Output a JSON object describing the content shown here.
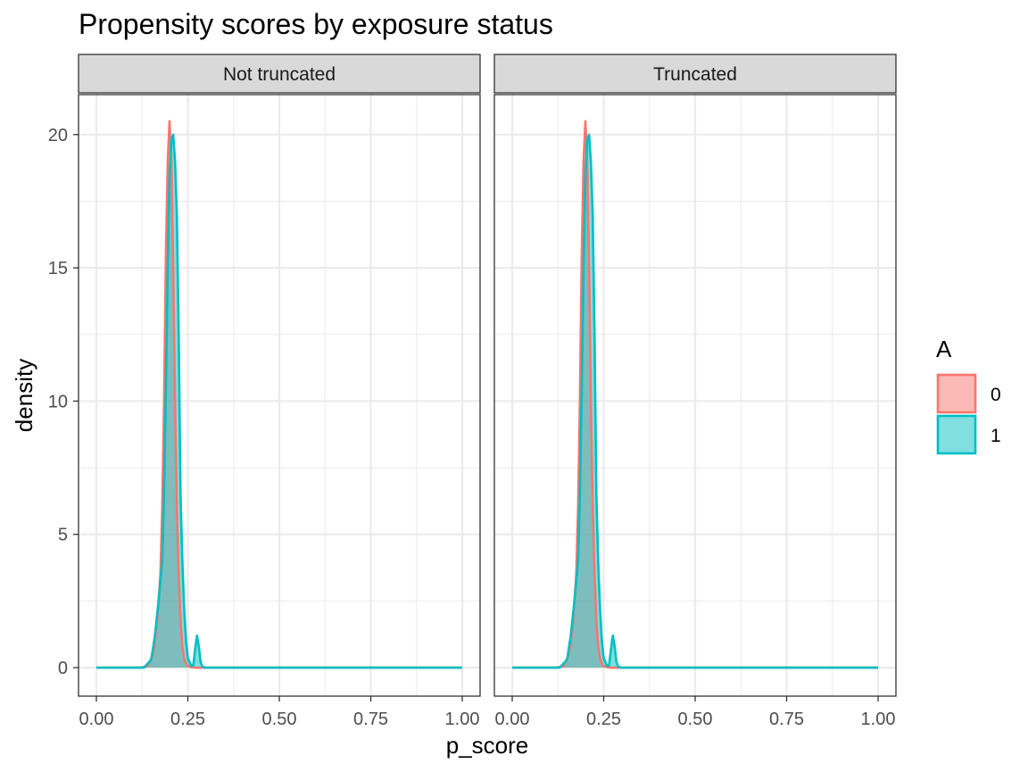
{
  "chart_data": {
    "type": "area",
    "title": "Propensity scores by exposure status",
    "xlabel": "p_score",
    "ylabel": "density",
    "xlim": [
      0,
      1
    ],
    "ylim": [
      0,
      21.5
    ],
    "x_ticks": [
      0,
      0.25,
      0.5,
      0.75,
      1.0
    ],
    "x_tick_labels": [
      "0.00",
      "0.25",
      "0.50",
      "0.75",
      "1.00"
    ],
    "y_ticks": [
      0,
      5,
      10,
      15,
      20
    ],
    "y_tick_labels": [
      "0",
      "5",
      "10",
      "15",
      "20"
    ],
    "grid": true,
    "legend": {
      "title": "A",
      "position": "right",
      "entries": [
        {
          "label": "0",
          "color": "#F8766D"
        },
        {
          "label": "1",
          "color": "#00BFC4"
        }
      ]
    },
    "panels": [
      {
        "strip": "Not truncated",
        "series": [
          {
            "name": "0",
            "color": "#F8766D",
            "x": [
              0.0,
              0.12,
              0.14,
              0.155,
              0.165,
              0.175,
              0.18,
              0.185,
              0.19,
              0.195,
              0.2,
              0.205,
              0.21,
              0.215,
              0.22,
              0.225,
              0.23,
              0.235,
              0.24,
              0.245,
              0.25,
              0.26,
              0.27,
              0.285,
              0.3,
              1.0
            ],
            "y": [
              0,
              0,
              0.05,
              0.5,
              1.5,
              3.5,
              6.0,
              10.0,
              15.5,
              19.0,
              20.5,
              19.0,
              15.0,
              10.0,
              6.0,
              3.5,
              1.8,
              0.8,
              0.35,
              0.15,
              0.05,
              0.02,
              0,
              0,
              0,
              0
            ]
          },
          {
            "name": "1",
            "color": "#00BFC4",
            "x": [
              0.0,
              0.13,
              0.15,
              0.16,
              0.17,
              0.18,
              0.185,
              0.19,
              0.195,
              0.2,
              0.205,
              0.21,
              0.215,
              0.22,
              0.225,
              0.23,
              0.235,
              0.24,
              0.245,
              0.25,
              0.26,
              0.265,
              0.27,
              0.275,
              0.28,
              0.285,
              0.29,
              0.3,
              1.0
            ],
            "y": [
              0,
              0,
              0.3,
              1.2,
              2.5,
              4.0,
              6.5,
              10.5,
              15.0,
              18.5,
              19.8,
              20.0,
              19.0,
              17.0,
              12.5,
              6.5,
              4.0,
              2.2,
              1.0,
              0.35,
              0.05,
              0.1,
              0.7,
              1.2,
              0.8,
              0.2,
              0.03,
              0,
              0
            ]
          }
        ]
      },
      {
        "strip": "Truncated",
        "series": [
          {
            "name": "0",
            "color": "#F8766D",
            "x": [
              0.0,
              0.12,
              0.14,
              0.155,
              0.165,
              0.175,
              0.18,
              0.185,
              0.19,
              0.195,
              0.2,
              0.205,
              0.21,
              0.215,
              0.22,
              0.225,
              0.23,
              0.235,
              0.24,
              0.245,
              0.25,
              0.26,
              0.27,
              0.285,
              0.3,
              1.0
            ],
            "y": [
              0,
              0,
              0.05,
              0.5,
              1.5,
              3.5,
              6.0,
              10.0,
              15.5,
              19.0,
              20.5,
              19.0,
              15.0,
              10.0,
              6.0,
              3.5,
              1.8,
              0.8,
              0.35,
              0.15,
              0.05,
              0.02,
              0,
              0,
              0,
              0
            ]
          },
          {
            "name": "1",
            "color": "#00BFC4",
            "x": [
              0.0,
              0.13,
              0.15,
              0.16,
              0.17,
              0.18,
              0.185,
              0.19,
              0.195,
              0.2,
              0.205,
              0.21,
              0.215,
              0.22,
              0.225,
              0.23,
              0.235,
              0.24,
              0.245,
              0.25,
              0.26,
              0.265,
              0.27,
              0.275,
              0.28,
              0.285,
              0.29,
              0.3,
              1.0
            ],
            "y": [
              0,
              0,
              0.3,
              1.2,
              2.5,
              4.0,
              6.5,
              10.5,
              15.0,
              18.5,
              19.8,
              20.0,
              19.0,
              17.0,
              12.5,
              6.5,
              4.0,
              2.2,
              1.0,
              0.35,
              0.05,
              0.1,
              0.7,
              1.2,
              0.8,
              0.2,
              0.03,
              0,
              0
            ]
          }
        ]
      }
    ]
  }
}
